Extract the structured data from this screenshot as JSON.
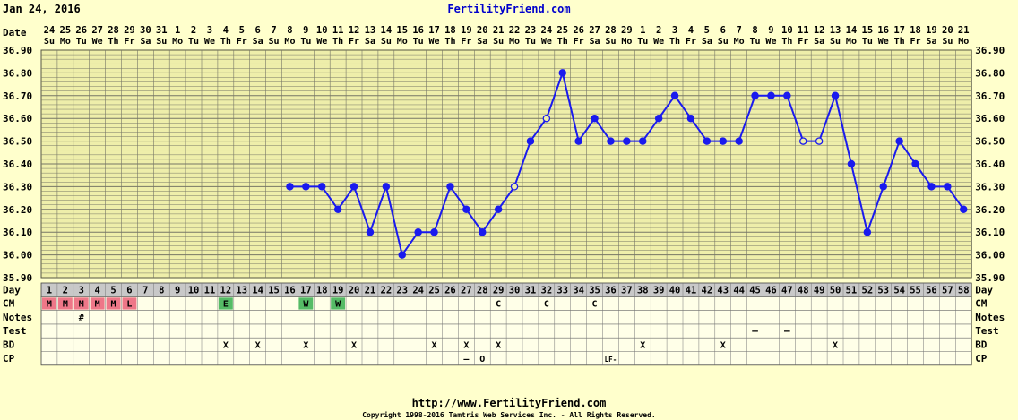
{
  "header": {
    "date": "Jan 24, 2016",
    "site_title": "FertilityFriend.com"
  },
  "footer": {
    "url": "http://www.FertilityFriend.com",
    "copyright": "Copyright 1998-2016 Tamtris Web Services Inc. - All Rights Reserved."
  },
  "chart_data": {
    "type": "line",
    "y_ticks": [
      "36.90",
      "36.80",
      "36.70",
      "36.60",
      "36.50",
      "36.40",
      "36.30",
      "36.20",
      "36.10",
      "36.00",
      "35.90"
    ],
    "ylim": [
      35.9,
      36.9
    ],
    "row_labels": {
      "date": "Date",
      "day": "Day",
      "cm": "CM",
      "notes": "Notes",
      "test": "Test",
      "bd": "BD",
      "cp": "CP"
    },
    "dates": [
      "24",
      "25",
      "26",
      "27",
      "28",
      "29",
      "30",
      "31",
      "1",
      "2",
      "3",
      "4",
      "5",
      "6",
      "7",
      "8",
      "9",
      "10",
      "11",
      "12",
      "13",
      "14",
      "15",
      "16",
      "17",
      "18",
      "19",
      "20",
      "21",
      "22",
      "23",
      "24",
      "25",
      "26",
      "27",
      "28",
      "29",
      "1",
      "2",
      "3",
      "4",
      "5",
      "6",
      "7",
      "8",
      "9",
      "10",
      "11",
      "12",
      "13",
      "14",
      "15",
      "16",
      "17",
      "18",
      "19",
      "20",
      "21"
    ],
    "weekdays": [
      "Su",
      "Mo",
      "Tu",
      "We",
      "Th",
      "Fr",
      "Sa"
    ],
    "temperatures": [
      null,
      null,
      null,
      null,
      null,
      null,
      null,
      null,
      null,
      null,
      null,
      null,
      null,
      null,
      null,
      36.3,
      36.3,
      36.3,
      36.2,
      36.3,
      36.1,
      36.3,
      36.0,
      36.1,
      36.1,
      36.3,
      36.2,
      36.1,
      36.2,
      36.3,
      36.5,
      36.6,
      36.8,
      36.5,
      36.6,
      36.5,
      36.5,
      36.5,
      36.6,
      36.7,
      36.6,
      36.5,
      36.5,
      36.5,
      36.7,
      36.7,
      36.7,
      36.5,
      36.5,
      36.7,
      36.4,
      36.1,
      36.3,
      36.5,
      36.4,
      36.3,
      36.3,
      36.2
    ],
    "open_points": [
      30,
      32,
      48,
      49
    ],
    "cm": [
      {
        "day": 1,
        "code": "M",
        "color": "#ee7788"
      },
      {
        "day": 2,
        "code": "M",
        "color": "#ee7788"
      },
      {
        "day": 3,
        "code": "M",
        "color": "#ee7788"
      },
      {
        "day": 4,
        "code": "M",
        "color": "#ee7788"
      },
      {
        "day": 5,
        "code": "M",
        "color": "#ee7788"
      },
      {
        "day": 6,
        "code": "L",
        "color": "#ee7788"
      },
      {
        "day": 12,
        "code": "E",
        "color": "#55bb66"
      },
      {
        "day": 17,
        "code": "W",
        "color": "#55bb66"
      },
      {
        "day": 19,
        "code": "W",
        "color": "#55bb66"
      },
      {
        "day": 29,
        "code": "C",
        "color": ""
      },
      {
        "day": 32,
        "code": "C",
        "color": ""
      },
      {
        "day": 35,
        "code": "C",
        "color": ""
      }
    ],
    "notes": [
      {
        "day": 3,
        "text": "#"
      }
    ],
    "test": [
      {
        "day": 45,
        "text": "–"
      },
      {
        "day": 47,
        "text": "–"
      }
    ],
    "bd": [
      12,
      14,
      17,
      20,
      25,
      27,
      29,
      38,
      43,
      50
    ],
    "bd_mark": "X",
    "cp": [
      {
        "day": 27,
        "text": "–"
      },
      {
        "day": 28,
        "text": "O"
      },
      {
        "day": 36,
        "text": "LF-"
      }
    ],
    "colors": {
      "background": "#ffffcc",
      "plot": "#eeeeaa",
      "line": "#1a1aee",
      "grid": "#777766",
      "row_bg": "#ffffe8",
      "day_bg": "#c8c8c8"
    }
  }
}
